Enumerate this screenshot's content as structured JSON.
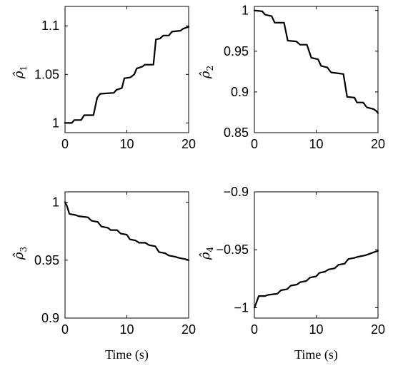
{
  "chart_data": [
    {
      "type": "line",
      "ylabel_base": "ρ̂",
      "ylabel_sub": "1",
      "xlabel": "",
      "xlim": [
        0,
        20
      ],
      "ylim": [
        0.99,
        1.12
      ],
      "xticks": [
        0,
        10,
        20
      ],
      "xtick_labels": [
        "0",
        "10",
        "20"
      ],
      "yticks": [
        1.0,
        1.05,
        1.1
      ],
      "ytick_labels": [
        "1",
        "1.05",
        "1.1"
      ],
      "series": [
        {
          "x": [
            0,
            1.1,
            1.5,
            2.6,
            3.1,
            4.6,
            5.2,
            5.7,
            7.9,
            8.3,
            9.2,
            9.6,
            10.6,
            11.2,
            11.6,
            12.5,
            12.9,
            14.3,
            14.7,
            15.4,
            15.9,
            16.8,
            17.3,
            18.7,
            19.1,
            20
          ],
          "y": [
            1.0,
            1.0,
            1.003,
            1.003,
            1.008,
            1.008,
            1.026,
            1.03,
            1.031,
            1.034,
            1.036,
            1.046,
            1.047,
            1.05,
            1.056,
            1.058,
            1.06,
            1.06,
            1.086,
            1.087,
            1.09,
            1.09,
            1.094,
            1.095,
            1.097,
            1.099
          ]
        }
      ]
    },
    {
      "type": "line",
      "ylabel_base": "ρ̂",
      "ylabel_sub": "2",
      "xlabel": "",
      "xlim": [
        0,
        20
      ],
      "ylim": [
        0.85,
        1.005
      ],
      "xticks": [
        0,
        10,
        20
      ],
      "xtick_labels": [
        "0",
        "10",
        "20"
      ],
      "yticks": [
        0.85,
        0.9,
        0.95,
        1.0
      ],
      "ytick_labels": [
        "0.85",
        "0.9",
        "0.95",
        "1"
      ],
      "series": [
        {
          "x": [
            0,
            1.3,
            1.7,
            2.8,
            3.3,
            4.8,
            5.4,
            6.8,
            7.4,
            8.5,
            9.2,
            10.3,
            10.8,
            11.8,
            12.4,
            14.4,
            15.0,
            16.2,
            16.6,
            17.6,
            18.2,
            19.3,
            19.8,
            20
          ],
          "y": [
            1.0,
            0.999,
            0.995,
            0.993,
            0.985,
            0.985,
            0.963,
            0.962,
            0.958,
            0.958,
            0.942,
            0.94,
            0.932,
            0.93,
            0.924,
            0.922,
            0.894,
            0.893,
            0.887,
            0.887,
            0.881,
            0.879,
            0.876,
            0.874
          ]
        }
      ]
    },
    {
      "type": "line",
      "ylabel_base": "ρ̂",
      "ylabel_sub": "3",
      "xlabel": "Time (s)",
      "xlim": [
        0,
        20
      ],
      "ylim": [
        0.9,
        1.009
      ],
      "xticks": [
        0,
        10,
        20
      ],
      "xtick_labels": [
        "0",
        "10",
        "20"
      ],
      "yticks": [
        0.9,
        0.95,
        1.0
      ],
      "ytick_labels": [
        "0.9",
        "0.95",
        "1"
      ],
      "series": [
        {
          "x": [
            0,
            0.3,
            0.7,
            1.7,
            2.2,
            3.7,
            4.3,
            5.3,
            5.9,
            6.9,
            7.4,
            8.4,
            9.0,
            10.0,
            10.5,
            11.4,
            12.0,
            13.0,
            13.6,
            14.6,
            15.2,
            16.2,
            16.8,
            17.8,
            18.4,
            19.4,
            20
          ],
          "y": [
            1.0,
            0.997,
            0.99,
            0.989,
            0.988,
            0.987,
            0.984,
            0.983,
            0.979,
            0.978,
            0.976,
            0.976,
            0.973,
            0.972,
            0.968,
            0.967,
            0.965,
            0.965,
            0.963,
            0.962,
            0.957,
            0.956,
            0.954,
            0.953,
            0.952,
            0.951,
            0.95
          ]
        }
      ]
    },
    {
      "type": "line",
      "ylabel_base": "ρ̂",
      "ylabel_sub": "4",
      "xlabel": "Time (s)",
      "xlim": [
        0,
        20
      ],
      "ylim": [
        -1.009,
        -0.9
      ],
      "xticks": [
        0,
        10,
        20
      ],
      "xtick_labels": [
        "0",
        "10",
        "20"
      ],
      "yticks": [
        -1.0,
        -0.95,
        -0.9
      ],
      "ytick_labels": [
        "−1",
        "−0.95",
        "−0.9"
      ],
      "series": [
        {
          "x": [
            0,
            0.3,
            0.7,
            1.7,
            2.2,
            3.7,
            4.3,
            5.3,
            5.9,
            6.9,
            7.4,
            8.4,
            9.0,
            10.0,
            10.5,
            11.4,
            12.0,
            13.0,
            13.6,
            14.6,
            15.2,
            16.2,
            16.8,
            17.8,
            18.4,
            19.4,
            20
          ],
          "y": [
            -1.0,
            -0.996,
            -0.99,
            -0.99,
            -0.989,
            -0.988,
            -0.985,
            -0.984,
            -0.981,
            -0.98,
            -0.978,
            -0.977,
            -0.974,
            -0.973,
            -0.97,
            -0.969,
            -0.967,
            -0.966,
            -0.963,
            -0.962,
            -0.958,
            -0.957,
            -0.956,
            -0.955,
            -0.954,
            -0.952,
            -0.951
          ]
        }
      ]
    }
  ]
}
